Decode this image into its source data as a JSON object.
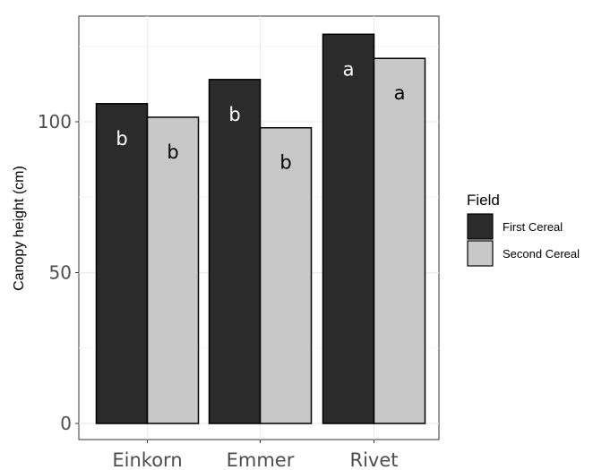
{
  "chart_data": {
    "type": "bar",
    "title": "",
    "xlabel": "",
    "ylabel": "Canopy height (cm)",
    "categories": [
      "Einkorn",
      "Emmer",
      "Rivet"
    ],
    "ylim": [
      0,
      135
    ],
    "yticks": [
      0,
      50,
      100
    ],
    "grid": true,
    "legend": {
      "title": "Field",
      "placement": "right"
    },
    "series": [
      {
        "name": "First Cereal",
        "color": "#2b2b2b",
        "values": [
          106,
          114,
          129
        ],
        "labels": [
          "b",
          "b",
          "a"
        ],
        "label_color": "#ffffff"
      },
      {
        "name": "Second Cereal",
        "color": "#c8c8c8",
        "values": [
          101.5,
          98,
          121
        ],
        "labels": [
          "b",
          "b",
          "a"
        ],
        "label_color": "#000000"
      }
    ]
  }
}
